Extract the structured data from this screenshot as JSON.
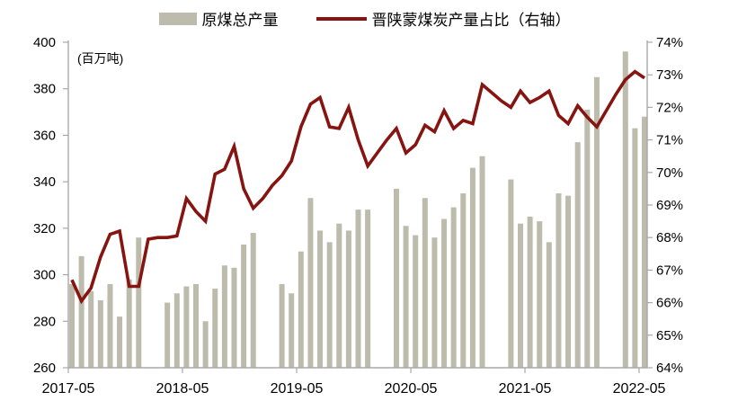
{
  "colors": {
    "bar": "#BDBBAB",
    "line": "#861410",
    "axis": "#A9A9A9",
    "text": "#000000"
  },
  "legend": {
    "items": [
      {
        "label": "原煤总产量",
        "type": "bar"
      },
      {
        "label": "晋陕蒙煤炭产量占比（右轴）",
        "type": "line"
      }
    ]
  },
  "chart_data": {
    "type": "bar",
    "title": "",
    "unit_label": "(百万吨)",
    "xlabel": "",
    "ylabel_left": "百万吨",
    "ylabel_right": "%",
    "grid": false,
    "legend_position": "top-center",
    "categories": [
      "2017-05",
      "2017-06",
      "2017-07",
      "2017-08",
      "2017-09",
      "2017-10",
      "2017-11",
      "2017-12",
      "2018-01",
      "2018-02",
      "2018-03",
      "2018-04",
      "2018-05",
      "2018-06",
      "2018-07",
      "2018-08",
      "2018-09",
      "2018-10",
      "2018-11",
      "2018-12",
      "2019-01",
      "2019-02",
      "2019-03",
      "2019-04",
      "2019-05",
      "2019-06",
      "2019-07",
      "2019-08",
      "2019-09",
      "2019-10",
      "2019-11",
      "2019-12",
      "2020-01",
      "2020-02",
      "2020-03",
      "2020-04",
      "2020-05",
      "2020-06",
      "2020-07",
      "2020-08",
      "2020-09",
      "2020-10",
      "2020-11",
      "2020-12",
      "2021-01",
      "2021-02",
      "2021-03",
      "2021-04",
      "2021-05",
      "2021-06",
      "2021-07",
      "2021-08",
      "2021-09",
      "2021-10",
      "2021-11",
      "2021-12",
      "2022-01",
      "2022-02",
      "2022-03",
      "2022-04",
      "2022-05"
    ],
    "series": [
      {
        "name": "原煤总产量",
        "type": "bar",
        "axis": "left",
        "unit": "百万吨",
        "values": [
          296,
          308,
          293,
          289,
          296,
          282,
          298,
          316,
          null,
          null,
          288,
          292,
          295,
          296,
          280,
          294,
          304,
          303,
          313,
          318,
          null,
          null,
          296,
          292,
          310,
          333,
          319,
          314,
          322,
          319,
          328,
          328,
          null,
          null,
          337,
          321,
          317,
          333,
          316,
          324,
          329,
          335,
          346,
          351,
          null,
          null,
          341,
          322,
          325,
          323,
          314,
          335,
          334,
          357,
          371,
          385,
          null,
          null,
          396,
          363,
          368
        ]
      },
      {
        "name": "晋陕蒙煤炭产量占比（右轴）",
        "type": "line",
        "axis": "right",
        "unit": "%",
        "values": [
          66.7,
          66.05,
          66.45,
          67.4,
          68.1,
          68.2,
          66.5,
          66.5,
          67.95,
          68.0,
          68.0,
          68.05,
          69.2,
          68.8,
          68.5,
          69.95,
          70.1,
          70.8,
          69.5,
          68.9,
          69.2,
          69.6,
          69.9,
          70.35,
          71.4,
          72.1,
          72.3,
          71.4,
          71.35,
          72.0,
          71.0,
          70.2,
          70.6,
          71.0,
          71.35,
          70.6,
          70.85,
          71.45,
          71.25,
          71.9,
          71.35,
          71.6,
          71.5,
          72.7,
          72.45,
          72.2,
          72.0,
          72.5,
          72.15,
          72.3,
          72.5,
          71.75,
          71.5,
          72.05,
          71.7,
          71.4,
          71.9,
          72.4,
          72.85,
          73.1,
          72.9
        ]
      }
    ],
    "left_axis": {
      "min": 260,
      "max": 400,
      "step": 20,
      "tick_values": [
        400,
        380,
        360,
        340,
        320,
        300,
        280,
        260
      ],
      "tick_labels": [
        "400",
        "380",
        "360",
        "340",
        "320",
        "300",
        "280",
        "260"
      ]
    },
    "right_axis": {
      "min": 64,
      "max": 74,
      "step": 1,
      "tick_values": [
        74,
        73,
        72,
        71,
        70,
        69,
        68,
        67,
        66,
        65,
        64
      ],
      "tick_labels": [
        "74%",
        "73%",
        "72%",
        "71%",
        "70%",
        "69%",
        "68%",
        "67%",
        "66%",
        "65%",
        "64%"
      ]
    },
    "x_axis": {
      "tick_labels": [
        "2017-05",
        "2018-05",
        "2019-05",
        "2020-05",
        "2021-05",
        "2022-05"
      ],
      "tick_month_indices": [
        0,
        12,
        24,
        36,
        48,
        60
      ]
    }
  }
}
